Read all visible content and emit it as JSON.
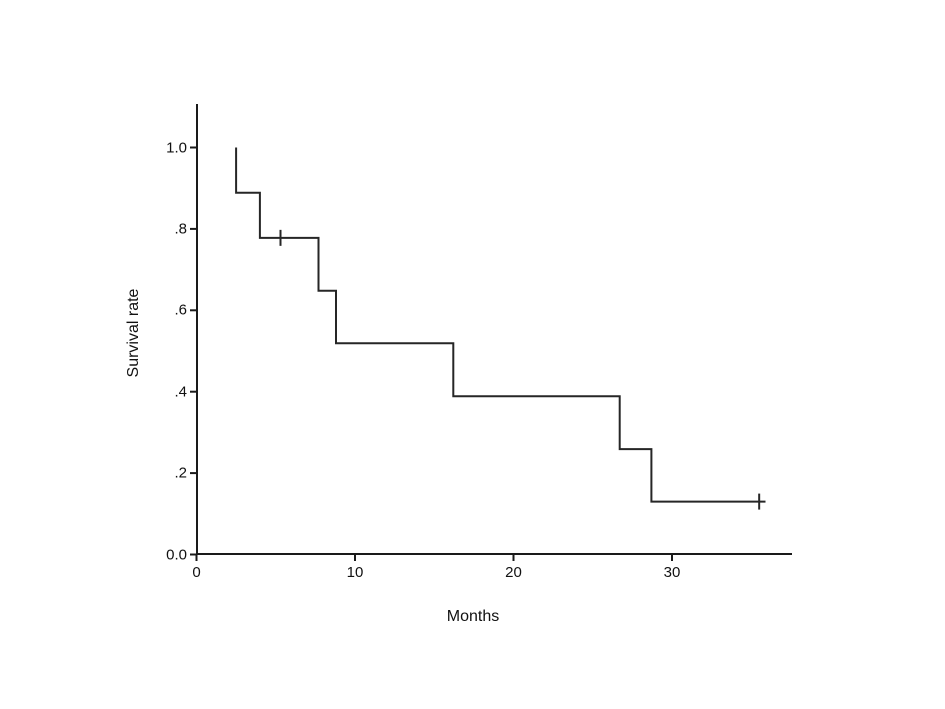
{
  "page": {
    "background": "#ffffff",
    "text_color": "#111111"
  },
  "chart_data": {
    "type": "line",
    "subtype": "kaplan-meier-survival-step",
    "title": "",
    "xlabel": "Months",
    "ylabel": "Survival rate",
    "xlim": [
      0,
      37.6
    ],
    "ylim": [
      0.0,
      1.1
    ],
    "grid": false,
    "legend": false,
    "line_color": "#262626",
    "axis_color": "#1a1a1a",
    "x_ticks": [
      {
        "value": 0,
        "label": "0"
      },
      {
        "value": 10,
        "label": "10"
      },
      {
        "value": 20,
        "label": "20"
      },
      {
        "value": 30,
        "label": "30"
      }
    ],
    "y_ticks": [
      {
        "value": 0.0,
        "label": "0.0"
      },
      {
        "value": 0.2,
        "label": ".2"
      },
      {
        "value": 0.4,
        "label": ".4"
      },
      {
        "value": 0.6,
        "label": ".6"
      },
      {
        "value": 0.8,
        "label": ".8"
      },
      {
        "value": 1.0,
        "label": "1.0"
      }
    ],
    "series": [
      {
        "name": "survival-curve",
        "step_points": [
          [
            2.5,
            1.0
          ],
          [
            2.5,
            0.889
          ],
          [
            4.0,
            0.889
          ],
          [
            4.0,
            0.778
          ],
          [
            7.7,
            0.778
          ],
          [
            7.7,
            0.648
          ],
          [
            8.8,
            0.648
          ],
          [
            8.8,
            0.519
          ],
          [
            16.2,
            0.519
          ],
          [
            16.2,
            0.389
          ],
          [
            26.7,
            0.389
          ],
          [
            26.7,
            0.259
          ],
          [
            28.7,
            0.259
          ],
          [
            28.7,
            0.13
          ],
          [
            35.9,
            0.13
          ]
        ]
      }
    ],
    "censored_points": [
      [
        5.3,
        0.778
      ],
      [
        35.5,
        0.13
      ]
    ]
  }
}
